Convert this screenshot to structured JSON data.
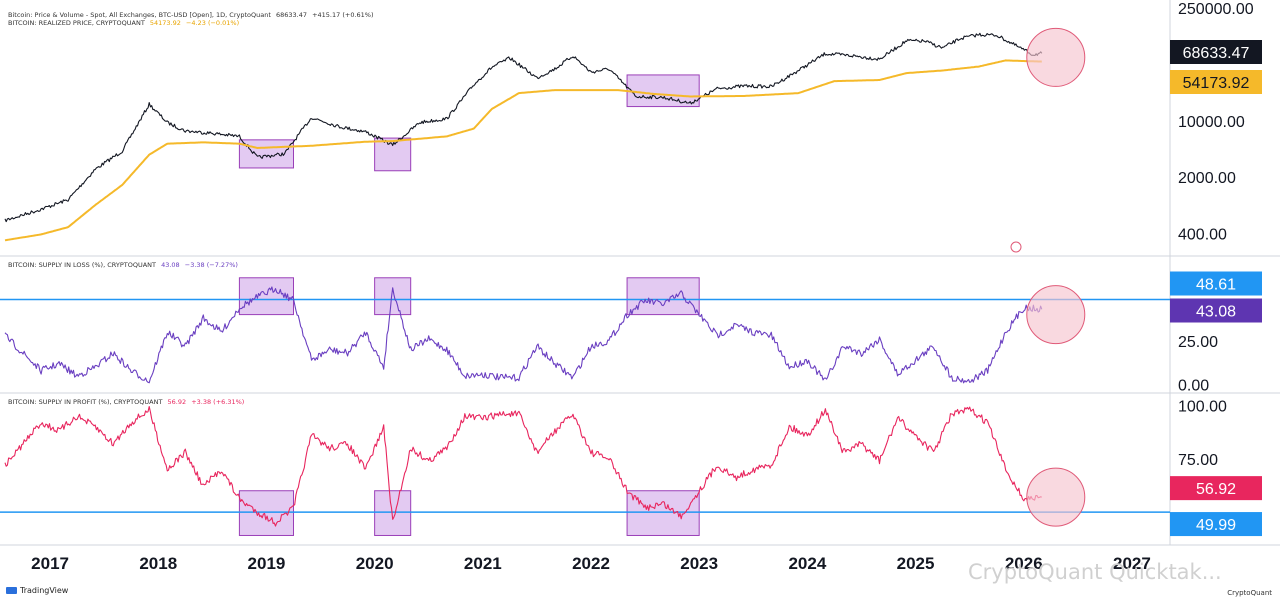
{
  "app": {
    "footer_brand": "TradingView",
    "footer_source": "CryptoQuant",
    "watermark": "CryptoQuant Quicktak..."
  },
  "legends": {
    "price": {
      "label": "Bitcoin: Price & Volume - Spot, All Exchanges, BTC-USD [Open], 1D, CryptoQuant",
      "value": "68633.47",
      "change": "+415.17 (+0.61%)"
    },
    "realized": {
      "label": "BITCOIN: REALIZED PRICE, CRYPTOQUANT",
      "value": "54173.92",
      "change": "−4.23 (−0.01%)"
    },
    "loss": {
      "label": "BITCOIN: SUPPLY IN LOSS (%), CRYPTOQUANT",
      "value": "43.08",
      "change": "−3.38 (−7.27%)"
    },
    "profit": {
      "label": "BITCOIN: SUPPLY IN PROFIT (%), CRYPTOQUANT",
      "value": "56.92",
      "change": "+3.38 (+6.31%)"
    }
  },
  "colors": {
    "price": "#131722",
    "realized": "#f5b92a",
    "loss": "#6a3fc1",
    "profit": "#e8265e",
    "hline": "#2196f3",
    "box_fill": "#d9b8ee",
    "box_stroke": "#9a3fb8",
    "circle_fill": "#f6c4cf",
    "circle_stroke": "#e05a78"
  },
  "chart_data": [
    {
      "type": "line",
      "panel": "price",
      "scale": "log",
      "x_range": [
        "2016-08",
        "2027-05"
      ],
      "y_range": [
        250,
        250000
      ],
      "y_ticks": [
        "250000.00",
        "10000.00",
        "2000.00",
        "400.00"
      ],
      "y_tick_values": [
        250000,
        10000,
        2000,
        400
      ],
      "price_badge": "68633.47",
      "realized_badge": "54173.92",
      "series": [
        {
          "key": "price",
          "x": [
            "2016-08",
            "2016-12",
            "2017-03",
            "2017-06",
            "2017-09",
            "2017-12",
            "2018-02",
            "2018-04",
            "2018-07",
            "2018-10",
            "2018-12",
            "2019-03",
            "2019-06",
            "2019-09",
            "2019-12",
            "2020-03",
            "2020-06",
            "2020-09",
            "2020-12",
            "2021-02",
            "2021-04",
            "2021-07",
            "2021-09",
            "2021-11",
            "2022-01",
            "2022-03",
            "2022-06",
            "2022-09",
            "2022-12",
            "2023-03",
            "2023-06",
            "2023-09",
            "2023-12",
            "2024-03",
            "2024-06",
            "2024-09",
            "2024-12",
            "2025-02",
            "2025-04",
            "2025-06",
            "2025-08",
            "2025-10",
            "2025-12",
            "2026-02",
            "2026-03"
          ],
          "y": [
            580,
            800,
            1050,
            2500,
            4200,
            16000,
            9500,
            7500,
            7000,
            6400,
            3500,
            3900,
            11000,
            8500,
            7300,
            5000,
            9500,
            10600,
            28000,
            46000,
            60000,
            34000,
            44000,
            64000,
            40000,
            44000,
            20000,
            19500,
            16500,
            25000,
            27000,
            26500,
            42000,
            68000,
            64000,
            58000,
            98000,
            97000,
            80000,
            105000,
            117000,
            115000,
            87000,
            66000,
            68633
          ]
        },
        {
          "key": "realized",
          "x": [
            "2016-08",
            "2016-12",
            "2017-03",
            "2017-06",
            "2017-09",
            "2017-12",
            "2018-02",
            "2018-06",
            "2018-10",
            "2018-12",
            "2019-06",
            "2019-12",
            "2020-03",
            "2020-09",
            "2020-12",
            "2021-02",
            "2021-05",
            "2021-09",
            "2021-12",
            "2022-04",
            "2022-08",
            "2022-12",
            "2023-06",
            "2023-12",
            "2024-04",
            "2024-09",
            "2024-12",
            "2025-04",
            "2025-08",
            "2025-11",
            "2026-01",
            "2026-03"
          ],
          "y": [
            330,
            390,
            480,
            900,
            1600,
            3800,
            5200,
            5400,
            5200,
            4600,
            4900,
            5500,
            5600,
            6400,
            8000,
            14000,
            22000,
            24000,
            24000,
            24000,
            21500,
            20000,
            20300,
            22000,
            31000,
            32000,
            39000,
            42000,
            47000,
            56000,
            55000,
            54174
          ]
        }
      ],
      "highlight_boxes": [
        {
          "x0": "2018-10",
          "x1": "2019-04",
          "y_top": 5800,
          "y_bottom": 2600
        },
        {
          "x0": "2020-01",
          "x1": "2020-05",
          "y_top": 6100,
          "y_bottom": 2400
        },
        {
          "x0": "2022-05",
          "x1": "2023-01",
          "y_top": 37000,
          "y_bottom": 15000
        }
      ],
      "highlight_circles": [
        {
          "x": "2026-03",
          "y": 61000
        }
      ]
    },
    {
      "type": "line",
      "panel": "supply_in_loss",
      "y_range": [
        -3,
        70
      ],
      "y_ticks": [
        "25.00",
        "0.00"
      ],
      "y_tick_values": [
        25,
        0
      ],
      "hline": 48.61,
      "hline_badge": "48.61",
      "value_badge": "43.08",
      "series": [
        {
          "key": "loss",
          "x": [
            "2016-08",
            "2016-10",
            "2016-12",
            "2017-02",
            "2017-04",
            "2017-06",
            "2017-08",
            "2017-10",
            "2017-12",
            "2018-02",
            "2018-04",
            "2018-06",
            "2018-08",
            "2018-10",
            "2018-12",
            "2019-02",
            "2019-04",
            "2019-06",
            "2019-08",
            "2019-10",
            "2019-12",
            "2020-02",
            "2020-03",
            "2020-05",
            "2020-07",
            "2020-09",
            "2020-11",
            "2021-01",
            "2021-03",
            "2021-05",
            "2021-07",
            "2021-09",
            "2021-11",
            "2022-01",
            "2022-03",
            "2022-05",
            "2022-07",
            "2022-09",
            "2022-11",
            "2023-01",
            "2023-03",
            "2023-05",
            "2023-07",
            "2023-09",
            "2023-11",
            "2024-01",
            "2024-03",
            "2024-05",
            "2024-07",
            "2024-09",
            "2024-11",
            "2025-01",
            "2025-03",
            "2025-05",
            "2025-07",
            "2025-09",
            "2025-11",
            "2026-01",
            "2026-03"
          ],
          "y": [
            28,
            18,
            8,
            12,
            5,
            10,
            18,
            8,
            2,
            30,
            22,
            38,
            30,
            44,
            50,
            55,
            48,
            14,
            20,
            18,
            30,
            10,
            55,
            20,
            26,
            20,
            5,
            6,
            4,
            4,
            22,
            12,
            4,
            22,
            25,
            40,
            48,
            46,
            52,
            40,
            28,
            34,
            30,
            28,
            10,
            14,
            2,
            22,
            18,
            26,
            6,
            14,
            22,
            4,
            2,
            8,
            30,
            44,
            43
          ]
        }
      ],
      "highlight_boxes": [
        {
          "x0": "2018-10",
          "x1": "2019-04",
          "y_top": 61,
          "y_bottom": 40
        },
        {
          "x0": "2020-01",
          "x1": "2020-05",
          "y_top": 61,
          "y_bottom": 40
        },
        {
          "x0": "2022-05",
          "x1": "2023-01",
          "y_top": 61,
          "y_bottom": 40
        }
      ],
      "highlight_circles": [
        {
          "x": "2026-03",
          "y": 40
        }
      ]
    },
    {
      "type": "line",
      "panel": "supply_in_profit",
      "y_range": [
        35,
        104
      ],
      "y_ticks": [
        "100.00",
        "75.00"
      ],
      "y_tick_values": [
        100,
        75
      ],
      "hline": 49.99,
      "hline_badge": "49.99",
      "value_badge": "56.92",
      "series": [
        {
          "key": "profit",
          "x": [
            "2016-08",
            "2016-10",
            "2016-12",
            "2017-02",
            "2017-04",
            "2017-06",
            "2017-08",
            "2017-10",
            "2017-12",
            "2018-02",
            "2018-04",
            "2018-06",
            "2018-08",
            "2018-10",
            "2018-12",
            "2019-02",
            "2019-04",
            "2019-06",
            "2019-08",
            "2019-10",
            "2019-12",
            "2020-02",
            "2020-03",
            "2020-05",
            "2020-07",
            "2020-09",
            "2020-11",
            "2021-01",
            "2021-03",
            "2021-05",
            "2021-07",
            "2021-09",
            "2021-11",
            "2022-01",
            "2022-03",
            "2022-05",
            "2022-07",
            "2022-09",
            "2022-11",
            "2023-01",
            "2023-03",
            "2023-05",
            "2023-07",
            "2023-09",
            "2023-11",
            "2024-01",
            "2024-03",
            "2024-05",
            "2024-07",
            "2024-09",
            "2024-11",
            "2025-01",
            "2025-03",
            "2025-05",
            "2025-07",
            "2025-09",
            "2025-11",
            "2026-01",
            "2026-03"
          ],
          "y": [
            72,
            82,
            92,
            88,
            95,
            90,
            82,
            92,
            98,
            70,
            78,
            62,
            70,
            56,
            50,
            45,
            52,
            86,
            80,
            82,
            70,
            90,
            45,
            80,
            74,
            80,
            95,
            94,
            96,
            96,
            78,
            88,
            96,
            78,
            75,
            60,
            52,
            54,
            48,
            60,
            72,
            66,
            70,
            72,
            90,
            86,
            98,
            78,
            82,
            74,
            94,
            86,
            78,
            96,
            98,
            92,
            70,
            56,
            57
          ]
        }
      ],
      "highlight_boxes": [
        {
          "x0": "2018-10",
          "x1": "2019-04",
          "y_top": 60,
          "y_bottom": 39
        },
        {
          "x0": "2020-01",
          "x1": "2020-05",
          "y_top": 60,
          "y_bottom": 39
        },
        {
          "x0": "2022-05",
          "x1": "2023-01",
          "y_top": 60,
          "y_bottom": 39
        }
      ],
      "highlight_circles": [
        {
          "x": "2026-03",
          "y": 57
        }
      ]
    }
  ],
  "x_axis": {
    "ticks": [
      "2017",
      "2018",
      "2019",
      "2020",
      "2021",
      "2022",
      "2023",
      "2024",
      "2025",
      "2026",
      "2027"
    ],
    "tick_dates": [
      "2017-01",
      "2018-01",
      "2019-01",
      "2020-01",
      "2021-01",
      "2022-01",
      "2023-01",
      "2024-01",
      "2025-01",
      "2026-01",
      "2027-01"
    ]
  }
}
